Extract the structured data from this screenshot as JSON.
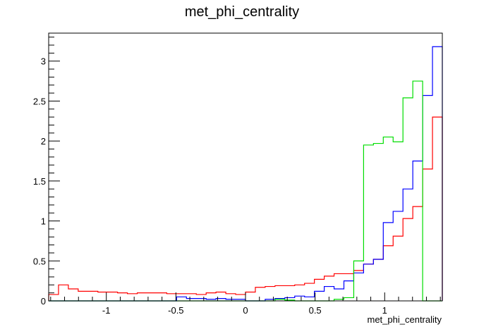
{
  "chart_data": {
    "type": "histogram",
    "title": "met_phi_centrality",
    "xlabel": "met_phi_centrality",
    "ylabel": "",
    "xlim": [
      -1.4142,
      1.4142
    ],
    "ylim": [
      0,
      3.35
    ],
    "grid": false,
    "legend": "none",
    "x_ticks": [
      {
        "value": -1,
        "label": "-1"
      },
      {
        "value": -0.5,
        "label": "-0.5"
      },
      {
        "value": 0,
        "label": "0"
      },
      {
        "value": 0.5,
        "label": "0.5"
      },
      {
        "value": 1,
        "label": "1"
      }
    ],
    "y_ticks": [
      {
        "value": 0,
        "label": "0"
      },
      {
        "value": 0.5,
        "label": "0.5"
      },
      {
        "value": 1,
        "label": "1"
      },
      {
        "value": 1.5,
        "label": "1.5"
      },
      {
        "value": 2,
        "label": "2"
      },
      {
        "value": 2.5,
        "label": "2.5"
      },
      {
        "value": 3,
        "label": "3"
      }
    ],
    "bins": 40,
    "series": [
      {
        "color": "#ff0000",
        "values": [
          0.08,
          0.2,
          0.15,
          0.12,
          0.12,
          0.11,
          0.11,
          0.1,
          0.09,
          0.1,
          0.1,
          0.1,
          0.09,
          0.09,
          0.09,
          0.08,
          0.1,
          0.11,
          0.09,
          0.08,
          0.11,
          0.17,
          0.18,
          0.19,
          0.19,
          0.2,
          0.22,
          0.27,
          0.31,
          0.34,
          0.34,
          0.38,
          0.46,
          0.52,
          0.69,
          0.81,
          1.03,
          1.18,
          1.65,
          2.3
        ]
      },
      {
        "color": "#0000ff",
        "values": [
          0,
          0,
          0,
          0,
          0,
          0,
          0,
          0,
          0,
          0,
          0,
          0,
          0,
          0.05,
          0.03,
          0.03,
          0.02,
          0.03,
          0.02,
          0.02,
          0,
          0,
          0.02,
          0.03,
          0.04,
          0.06,
          0.05,
          0.12,
          0.18,
          0.15,
          0.25,
          0.35,
          0.46,
          0.52,
          0.98,
          1.12,
          1.4,
          1.75,
          2.57,
          3.18
        ]
      },
      {
        "color": "#00dd00",
        "values": [
          0,
          0,
          0,
          0,
          0,
          0,
          0,
          0,
          0,
          0,
          0,
          0,
          0,
          0,
          0,
          0,
          0,
          0,
          0,
          0,
          0,
          0,
          0,
          0.02,
          0.01,
          0,
          0,
          0,
          0,
          0.02,
          0.04,
          0.5,
          1.95,
          1.97,
          2.05,
          1.99,
          2.54,
          2.75,
          0,
          0
        ]
      }
    ]
  }
}
